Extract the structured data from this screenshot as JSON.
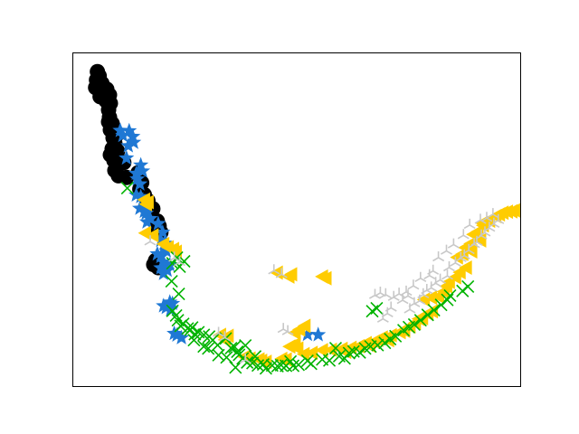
{
  "chart_data": {
    "type": "scatter",
    "title": "",
    "xlabel": "",
    "ylabel": "",
    "xlim": [
      0,
      100
    ],
    "ylim": [
      0,
      100
    ],
    "grid": false,
    "axis_ticks": false,
    "series": [
      {
        "marker": "circle",
        "color": "#000000",
        "points": [
          [
            5.4,
            94.5
          ],
          [
            5.8,
            93.2
          ],
          [
            5.2,
            92.0
          ],
          [
            6.4,
            91.0
          ],
          [
            5.0,
            89.7
          ],
          [
            6.9,
            88.7
          ],
          [
            7.5,
            89.2
          ],
          [
            8.1,
            87.5
          ],
          [
            6.0,
            87.0
          ],
          [
            7.3,
            85.8
          ],
          [
            8.3,
            85.0
          ],
          [
            7.9,
            83.0
          ],
          [
            8.1,
            80.8
          ],
          [
            7.9,
            79.4
          ],
          [
            8.7,
            78.9
          ],
          [
            8.3,
            77.0
          ],
          [
            9.7,
            75.5
          ],
          [
            8.9,
            74.6
          ],
          [
            9.3,
            73.0
          ],
          [
            8.7,
            71.3
          ],
          [
            9.9,
            70.6
          ],
          [
            8.3,
            69.5
          ],
          [
            9.1,
            67.8
          ],
          [
            10.3,
            66.9
          ],
          [
            11.3,
            67.2
          ],
          [
            9.3,
            64.8
          ],
          [
            10.1,
            63.2
          ],
          [
            11.9,
            62.7
          ],
          [
            14.5,
            64.1
          ],
          [
            15.3,
            61.1
          ],
          [
            14.9,
            59.2
          ],
          [
            15.9,
            57.5
          ],
          [
            16.7,
            55.7
          ],
          [
            17.8,
            53.3
          ],
          [
            18.8,
            49.6
          ],
          [
            19.2,
            48.1
          ],
          [
            18.6,
            47.4
          ],
          [
            19.6,
            46.2
          ],
          [
            18.4,
            37.7
          ],
          [
            18.0,
            36.5
          ],
          [
            19.0,
            35.6
          ]
        ]
      },
      {
        "marker": "star",
        "color": "#1f78d4",
        "points": [
          [
            10.5,
            76.8
          ],
          [
            11.1,
            75.3
          ],
          [
            12.5,
            76.7
          ],
          [
            13.3,
            75.0
          ],
          [
            13.5,
            73.2
          ],
          [
            12.3,
            72.2
          ],
          [
            11.9,
            68.5
          ],
          [
            14.1,
            63.9
          ],
          [
            15.1,
            66.4
          ],
          [
            15.5,
            64.6
          ],
          [
            14.3,
            62.2
          ],
          [
            14.9,
            60.7
          ],
          [
            14.1,
            57.4
          ],
          [
            15.1,
            56.9
          ],
          [
            14.9,
            53.4
          ],
          [
            15.9,
            52.5
          ],
          [
            16.3,
            51.9
          ],
          [
            17.2,
            50.3
          ],
          [
            16.5,
            49.3
          ],
          [
            19.0,
            48.8
          ],
          [
            20.0,
            46.2
          ],
          [
            19.6,
            43.8
          ],
          [
            20.4,
            42.9
          ],
          [
            20.8,
            40.6
          ],
          [
            18.8,
            39.7
          ],
          [
            19.6,
            38.9
          ],
          [
            20.2,
            37.3
          ],
          [
            19.6,
            35.5
          ],
          [
            21.6,
            36.4
          ],
          [
            21.0,
            34.8
          ],
          [
            20.2,
            33.8
          ],
          [
            21.6,
            25.2
          ],
          [
            20.2,
            24.1
          ],
          [
            22.2,
            24.8
          ],
          [
            20.8,
            23.6
          ],
          [
            21.8,
            23.0
          ],
          [
            23.2,
            15.3
          ],
          [
            24.2,
            14.5
          ],
          [
            22.6,
            15.8
          ],
          [
            52.4,
            15.5
          ],
          [
            54.8,
            15.4
          ]
        ]
      },
      {
        "marker": "triangle-left",
        "color": "#ffcc00",
        "points": [
          [
            15.9,
            56.0
          ],
          [
            16.7,
            55.3
          ],
          [
            16.3,
            54.7
          ],
          [
            16.1,
            46.0
          ],
          [
            17.8,
            45.3
          ],
          [
            20.2,
            42.7
          ],
          [
            21.2,
            41.7
          ],
          [
            22.4,
            41.2
          ],
          [
            23.0,
            40.4
          ],
          [
            45.6,
            34.1
          ],
          [
            48.8,
            33.6
          ],
          [
            48.2,
            32.9
          ],
          [
            55.7,
            32.9
          ],
          [
            56.5,
            32.4
          ],
          [
            32.9,
            15.4
          ],
          [
            34.6,
            15.1
          ],
          [
            33.9,
            13.9
          ],
          [
            38.3,
            8.8
          ],
          [
            39.5,
            8.3
          ],
          [
            41.5,
            8.0
          ],
          [
            42.1,
            7.6
          ],
          [
            43.1,
            7.3
          ],
          [
            46.6,
            8.2
          ],
          [
            47.6,
            8.0
          ],
          [
            49.6,
            16.0
          ],
          [
            50.6,
            17.0
          ],
          [
            51.8,
            18.1
          ],
          [
            48.4,
            11.9
          ],
          [
            49.6,
            12.6
          ],
          [
            50.2,
            11.3
          ],
          [
            51.6,
            9.6
          ],
          [
            53.4,
            10.0
          ],
          [
            55.7,
            10.8
          ],
          [
            57.7,
            10.9
          ],
          [
            60.1,
            11.2
          ],
          [
            62.1,
            11.5
          ],
          [
            60.9,
            10.3
          ],
          [
            63.9,
            12.0
          ],
          [
            65.5,
            12.9
          ],
          [
            66.3,
            12.2
          ],
          [
            67.3,
            13.4
          ],
          [
            68.1,
            13.9
          ],
          [
            69.1,
            14.6
          ],
          [
            70.5,
            13.8
          ],
          [
            71.1,
            15.3
          ],
          [
            73.1,
            16.2
          ],
          [
            74.1,
            16.6
          ],
          [
            75.3,
            17.9
          ],
          [
            76.5,
            19.0
          ],
          [
            77.3,
            20.2
          ],
          [
            78.1,
            20.4
          ],
          [
            79.3,
            21.7
          ],
          [
            80.3,
            22.5
          ],
          [
            78.5,
            26.0
          ],
          [
            80.1,
            26.6
          ],
          [
            81.7,
            26.9
          ],
          [
            82.9,
            28.4
          ],
          [
            83.5,
            30.0
          ],
          [
            84.1,
            31.3
          ],
          [
            85.5,
            32.7
          ],
          [
            86.5,
            34.2
          ],
          [
            87.9,
            35.6
          ],
          [
            85.9,
            38.7
          ],
          [
            87.1,
            39.7
          ],
          [
            89.1,
            40.5
          ],
          [
            87.7,
            41.6
          ],
          [
            88.9,
            42.8
          ],
          [
            91.1,
            43.8
          ],
          [
            89.5,
            45.6
          ],
          [
            90.5,
            46.4
          ],
          [
            91.7,
            48.3
          ],
          [
            93.1,
            49.7
          ],
          [
            91.5,
            49.0
          ],
          [
            94.5,
            51.1
          ],
          [
            95.3,
            51.6
          ],
          [
            96.1,
            52.1
          ],
          [
            97.1,
            52.4
          ],
          [
            98.1,
            52.5
          ],
          [
            98.7,
            52.8
          ]
        ]
      },
      {
        "marker": "x",
        "color": "#00b300",
        "points": [
          [
            12.1,
            59.5
          ],
          [
            22.2,
            36.9
          ],
          [
            23.2,
            38.6
          ],
          [
            23.8,
            35.9
          ],
          [
            22.0,
            31.5
          ],
          [
            23.6,
            27.7
          ],
          [
            22.2,
            22.6
          ],
          [
            23.0,
            21.2
          ],
          [
            23.4,
            19.8
          ],
          [
            24.0,
            18.1
          ],
          [
            24.6,
            18.7
          ],
          [
            25.6,
            17.3
          ],
          [
            26.2,
            16.9
          ],
          [
            27.2,
            15.6
          ],
          [
            28.0,
            16.2
          ],
          [
            29.2,
            15.4
          ],
          [
            30.4,
            14.9
          ],
          [
            31.2,
            13.8
          ],
          [
            32.3,
            12.3
          ],
          [
            34.1,
            14.3
          ],
          [
            36.1,
            11.8
          ],
          [
            37.1,
            9.4
          ],
          [
            37.9,
            8.3
          ],
          [
            38.9,
            7.1
          ],
          [
            40.1,
            6.9
          ],
          [
            41.3,
            6.2
          ],
          [
            42.5,
            6.5
          ],
          [
            44.5,
            6.2
          ],
          [
            45.7,
            6.0
          ],
          [
            46.5,
            6.3
          ],
          [
            47.6,
            6.1
          ],
          [
            48.6,
            7.4
          ],
          [
            49.2,
            6.1
          ],
          [
            50.4,
            6.4
          ],
          [
            52.4,
            7.6
          ],
          [
            53.2,
            6.7
          ],
          [
            55.7,
            8.0
          ],
          [
            57.3,
            7.7
          ],
          [
            59.5,
            9.0
          ],
          [
            60.7,
            8.3
          ],
          [
            61.7,
            9.9
          ],
          [
            62.7,
            10.4
          ],
          [
            64.1,
            10.1
          ],
          [
            65.3,
            11.3
          ],
          [
            66.5,
            11.9
          ],
          [
            68.1,
            12.3
          ],
          [
            69.7,
            13.0
          ],
          [
            70.9,
            14.1
          ],
          [
            72.1,
            15.0
          ],
          [
            73.9,
            16.8
          ],
          [
            75.1,
            17.7
          ],
          [
            76.3,
            18.5
          ],
          [
            77.7,
            19.8
          ],
          [
            79.3,
            21.4
          ],
          [
            80.7,
            22.8
          ],
          [
            82.3,
            24.4
          ],
          [
            83.7,
            25.9
          ],
          [
            84.3,
            27.2
          ],
          [
            87.1,
            28.6
          ],
          [
            88.3,
            29.9
          ],
          [
            66.9,
            22.5
          ],
          [
            67.9,
            23.4
          ],
          [
            29.2,
            11.9
          ],
          [
            30.2,
            11.3
          ],
          [
            36.7,
            10.3
          ],
          [
            35.3,
            11.4
          ],
          [
            32.5,
            9.3
          ],
          [
            34.3,
            8.6
          ],
          [
            38.5,
            12.2
          ],
          [
            36.3,
            5.6
          ],
          [
            40.7,
            8.9
          ],
          [
            43.1,
            5.3
          ],
          [
            58.7,
            11.4
          ],
          [
            24.8,
            37.5
          ],
          [
            27.0,
            13.8
          ],
          [
            26.6,
            17.6
          ]
        ]
      },
      {
        "marker": "tri",
        "color": "#c8c8c8",
        "points": [
          [
            17.2,
            43.4
          ],
          [
            22.6,
            38.5
          ],
          [
            23.8,
            37.2
          ],
          [
            44.9,
            34.7
          ],
          [
            46.6,
            33.6
          ],
          [
            67.5,
            27.3
          ],
          [
            68.7,
            28.0
          ],
          [
            69.9,
            27.5
          ],
          [
            71.7,
            26.7
          ],
          [
            73.7,
            25.8
          ],
          [
            74.9,
            27.1
          ],
          [
            75.3,
            23.0
          ],
          [
            76.3,
            24.8
          ],
          [
            77.5,
            25.6
          ],
          [
            78.3,
            27.5
          ],
          [
            79.1,
            28.8
          ],
          [
            80.1,
            29.5
          ],
          [
            81.1,
            30.9
          ],
          [
            82.1,
            31.9
          ],
          [
            83.7,
            33.1
          ],
          [
            84.1,
            35.6
          ],
          [
            85.5,
            37.0
          ],
          [
            86.7,
            38.4
          ],
          [
            87.5,
            39.2
          ],
          [
            88.5,
            40.8
          ],
          [
            89.7,
            42.6
          ],
          [
            90.3,
            43.3
          ],
          [
            91.3,
            45.2
          ],
          [
            92.1,
            46.1
          ],
          [
            93.1,
            47.5
          ],
          [
            94.1,
            48.7
          ],
          [
            95.1,
            49.8
          ],
          [
            93.9,
            51.6
          ],
          [
            92.5,
            50.5
          ],
          [
            91.1,
            49.9
          ],
          [
            88.7,
            48.4
          ],
          [
            87.3,
            45.3
          ],
          [
            85.1,
            42.5
          ],
          [
            83.5,
            40.6
          ],
          [
            81.7,
            38.6
          ],
          [
            80.5,
            34.6
          ],
          [
            79.7,
            33.2
          ],
          [
            77.7,
            32.4
          ],
          [
            76.1,
            30.1
          ],
          [
            74.5,
            28.3
          ],
          [
            72.9,
            27.7
          ],
          [
            71.1,
            23.5
          ],
          [
            70.3,
            21.8
          ],
          [
            69.3,
            20.2
          ],
          [
            33.9,
            14.6
          ],
          [
            32.5,
            15.9
          ],
          [
            38.5,
            7.9
          ],
          [
            48.0,
            16.4
          ],
          [
            47.0,
            17.1
          ]
        ]
      }
    ]
  }
}
